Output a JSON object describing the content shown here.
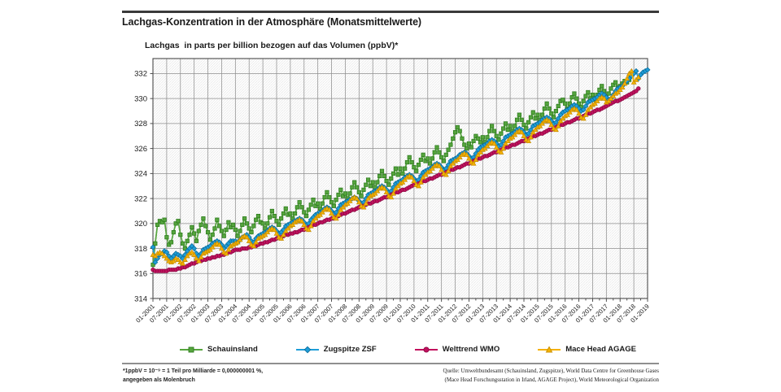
{
  "page": {
    "title": "Lachgas-Konzentration in der Atmosphäre (Monatsmittelwerte)",
    "subtitle": "Lachgas  in parts per billion bezogen auf das Volumen (ppbV)*",
    "footnote_line1": "*1ppbV = 10⁻⁹ = 1 Teil pro Milliarde = 0,000000001 %,",
    "footnote_line2": "angegeben als Molenbruch",
    "source_line1": "Quelle: Umweltbundesamt (Schauinsland, Zugspitze), World Data Centre for Greenhouse Gases",
    "source_line2": "(Mace Head Forschungsstation in Irland, AGAGE Project), World Meteorological Organization"
  },
  "chart_data": {
    "type": "line",
    "title": "Lachgas-Konzentration in der Atmosphäre (Monatsmittelwerte)",
    "ylabel": "Lachgas in parts per billion bezogen auf das Volumen (ppbV)*",
    "xlabel": "",
    "grid": true,
    "background_hatch": true,
    "legend_position": "bottom",
    "x_unit": "month",
    "x_start": "01-2001",
    "x_end": "01-2019",
    "ylim": [
      314,
      333.2
    ],
    "y_ticks": [
      314,
      316,
      318,
      320,
      322,
      324,
      326,
      328,
      330,
      332
    ],
    "x_tick_labels": [
      "01-2001",
      "07-2001",
      "01-2002",
      "07-2002",
      "01-2003",
      "07-2003",
      "01-2004",
      "07-2004",
      "01-2005",
      "07-2005",
      "01-2006",
      "07-2006",
      "01-2007",
      "07-2007",
      "01-2008",
      "07-2008",
      "01-2009",
      "07-2009",
      "01-2010",
      "07-2010",
      "01-2011",
      "07-2011",
      "01-2012",
      "07-2012",
      "01-2013",
      "07-2013",
      "01-2014",
      "07-2014",
      "01-2015",
      "07-2015",
      "01-2016",
      "07-2016",
      "01-2017",
      "07-2017",
      "01-2018",
      "07-2018",
      "01-2019"
    ],
    "series": [
      {
        "name": "Schauinsland",
        "marker": "square",
        "color": "#56a53e",
        "edge": "#2e7d1e",
        "start": "01-2001",
        "interval": "monthly",
        "values": [
          316.7,
          318.4,
          319.9,
          320.2,
          320.1,
          320.3,
          318.9,
          318.3,
          318.5,
          319.3,
          320.0,
          320.2,
          319.1,
          318.4,
          318.0,
          318.6,
          319.1,
          319.7,
          319.2,
          318.6,
          319.4,
          319.9,
          320.4,
          319.8,
          319.3,
          318.7,
          319.1,
          319.6,
          320.3,
          319.8,
          319.4,
          319.0,
          319.5,
          320.1,
          319.7,
          319.9,
          319.5,
          319.0,
          319.4,
          319.9,
          320.4,
          320.0,
          319.6,
          319.3,
          319.8,
          320.3,
          320.6,
          320.1,
          320.0,
          319.6,
          320.0,
          320.5,
          321.0,
          320.6,
          320.2,
          319.9,
          320.4,
          320.8,
          321.2,
          320.7,
          320.8,
          320.4,
          320.8,
          321.3,
          321.7,
          321.3,
          320.9,
          320.6,
          321.1,
          321.5,
          321.9,
          321.4,
          321.6,
          321.2,
          321.6,
          322.1,
          322.5,
          322.1,
          321.7,
          321.4,
          321.9,
          322.3,
          322.7,
          322.2,
          322.4,
          322.0,
          322.4,
          322.9,
          323.3,
          322.9,
          322.5,
          322.2,
          322.7,
          323.1,
          323.5,
          323.0,
          323.3,
          322.9,
          323.3,
          323.8,
          324.2,
          323.8,
          323.4,
          323.1,
          323.6,
          324.0,
          324.4,
          323.9,
          324.4,
          324.0,
          324.4,
          324.9,
          325.3,
          324.9,
          324.5,
          324.2,
          324.7,
          325.1,
          325.5,
          325.0,
          325.2,
          324.8,
          325.2,
          325.7,
          326.1,
          325.7,
          325.3,
          325.0,
          325.5,
          325.9,
          326.3,
          326.8,
          327.3,
          327.7,
          327.4,
          326.8,
          326.3,
          326.0,
          326.4,
          326.1,
          326.6,
          327.0,
          326.8,
          326.5,
          326.9,
          326.5,
          326.9,
          327.4,
          327.8,
          327.4,
          327.0,
          326.7,
          327.2,
          327.6,
          328.0,
          327.5,
          327.8,
          327.4,
          327.8,
          328.3,
          328.7,
          328.3,
          327.9,
          327.6,
          328.1,
          328.5,
          328.9,
          328.4,
          328.7,
          328.3,
          328.7,
          329.2,
          329.6,
          329.2,
          328.8,
          328.5,
          329.0,
          329.4,
          329.8,
          329.9,
          329.6,
          329.2,
          329.6,
          330.1,
          330.4,
          330.0,
          329.6,
          329.3,
          329.8,
          330.2,
          330.5,
          330.0,
          330.3,
          329.9,
          330.3,
          330.7,
          331.0,
          330.6,
          330.2,
          330.4,
          330.8,
          331.1,
          331.3,
          330.9,
          331.0,
          331.2,
          331.4,
          331.3,
          331.5
        ]
      },
      {
        "name": "Zugspitze ZSF",
        "marker": "diamond",
        "color": "#1e9ed9",
        "edge": "#0c6f9e",
        "start": "01-2001",
        "interval": "monthly",
        "values": [
          318.1,
          316.9,
          317.2,
          317.5,
          317.6,
          317.8,
          317.7,
          317.4,
          317.2,
          317.4,
          317.6,
          317.5,
          317.4,
          317.2,
          317.5,
          317.8,
          318.0,
          318.2,
          318.0,
          317.6,
          317.4,
          317.6,
          317.9,
          318.0,
          318.1,
          318.2,
          318.4,
          318.5,
          318.6,
          318.5,
          318.3,
          318.0,
          318.2,
          318.4,
          318.6,
          318.6,
          318.6,
          318.5,
          318.7,
          318.9,
          319.0,
          319.1,
          318.9,
          318.6,
          318.5,
          318.8,
          319.0,
          319.1,
          319.2,
          319.3,
          319.4,
          319.6,
          319.7,
          319.6,
          319.4,
          319.2,
          319.3,
          319.5,
          319.8,
          319.9,
          320.0,
          320.1,
          320.2,
          320.3,
          320.4,
          320.3,
          320.1,
          319.9,
          320.0,
          320.3,
          320.5,
          320.7,
          320.8,
          320.9,
          321.0,
          321.2,
          321.3,
          321.2,
          321.0,
          320.8,
          320.9,
          321.2,
          321.5,
          321.6,
          321.7,
          321.8,
          321.9,
          322.0,
          322.1,
          322.0,
          321.8,
          321.6,
          321.7,
          322.0,
          322.3,
          322.4,
          322.5,
          322.6,
          322.7,
          322.9,
          323.0,
          322.9,
          322.7,
          322.5,
          322.6,
          322.9,
          323.2,
          323.3,
          323.4,
          323.5,
          323.7,
          323.8,
          323.9,
          323.8,
          323.6,
          323.4,
          323.5,
          323.8,
          324.1,
          324.2,
          324.3,
          324.4,
          324.5,
          324.7,
          324.8,
          324.7,
          324.5,
          324.3,
          324.4,
          324.7,
          325.0,
          325.1,
          325.2,
          325.3,
          325.5,
          325.6,
          325.7,
          325.6,
          325.4,
          325.2,
          325.3,
          325.6,
          325.9,
          326.1,
          326.2,
          326.3,
          326.4,
          326.6,
          326.7,
          326.6,
          326.4,
          326.2,
          326.3,
          326.6,
          326.9,
          327.0,
          327.1,
          327.2,
          327.3,
          327.5,
          327.6,
          327.5,
          327.3,
          327.1,
          327.2,
          327.5,
          327.8,
          327.9,
          328.0,
          328.1,
          328.3,
          328.4,
          328.5,
          328.4,
          328.2,
          328.0,
          328.1,
          328.4,
          328.7,
          328.9,
          329.0,
          329.1,
          329.2,
          329.4,
          329.5,
          329.4,
          329.2,
          329.0,
          329.1,
          329.4,
          329.7,
          329.8,
          329.9,
          330.0,
          330.1,
          330.3,
          330.4,
          330.3,
          330.1,
          329.9,
          330.0,
          330.3,
          330.6,
          330.8,
          330.9,
          331.0,
          331.2,
          331.4,
          331.6,
          331.8,
          332.0,
          332.2,
          331.6,
          331.9,
          332.1,
          332.2,
          332.3
        ]
      },
      {
        "name": "Welttrend WMO",
        "marker": "circle",
        "color": "#c2115e",
        "edge": "#8d0a45",
        "start": "01-2001",
        "interval": "monthly",
        "values": [
          316.3,
          316.2,
          316.2,
          316.2,
          316.2,
          316.2,
          316.2,
          316.3,
          316.3,
          316.3,
          316.3,
          316.4,
          316.4,
          316.5,
          316.5,
          316.6,
          316.7,
          316.8,
          316.8,
          316.9,
          317.0,
          317.0,
          317.1,
          317.1,
          317.2,
          317.2,
          317.3,
          317.3,
          317.4,
          317.4,
          317.5,
          317.5,
          317.6,
          317.7,
          317.7,
          317.8,
          317.9,
          317.9,
          317.9,
          318.0,
          318.0,
          318.0,
          318.1,
          318.1,
          318.2,
          318.2,
          318.3,
          318.4,
          318.4,
          318.5,
          318.5,
          318.6,
          318.7,
          318.7,
          318.8,
          318.9,
          318.9,
          319.0,
          319.1,
          319.1,
          319.2,
          319.2,
          319.3,
          319.3,
          319.4,
          319.5,
          319.5,
          319.6,
          319.7,
          319.8,
          319.9,
          319.9,
          320.0,
          320.1,
          320.1,
          320.2,
          320.3,
          320.3,
          320.4,
          320.4,
          320.5,
          320.6,
          320.7,
          320.8,
          320.8,
          320.9,
          321.0,
          321.1,
          321.1,
          321.2,
          321.3,
          321.4,
          321.4,
          321.5,
          321.6,
          321.6,
          321.7,
          321.8,
          321.8,
          321.9,
          322.0,
          322.1,
          322.1,
          322.2,
          322.3,
          322.4,
          322.5,
          322.5,
          322.6,
          322.7,
          322.7,
          322.8,
          322.9,
          323.0,
          323.1,
          323.1,
          323.2,
          323.3,
          323.4,
          323.4,
          323.5,
          323.6,
          323.6,
          323.7,
          323.8,
          323.9,
          323.9,
          324.0,
          324.1,
          324.2,
          324.3,
          324.3,
          324.4,
          324.5,
          324.5,
          324.6,
          324.7,
          324.8,
          324.8,
          324.9,
          325.0,
          325.1,
          325.2,
          325.2,
          325.3,
          325.4,
          325.4,
          325.5,
          325.6,
          325.7,
          325.7,
          325.8,
          325.9,
          326.0,
          326.1,
          326.1,
          326.2,
          326.3,
          326.3,
          326.4,
          326.5,
          326.6,
          326.6,
          326.7,
          326.8,
          326.9,
          327.0,
          327.0,
          327.1,
          327.2,
          327.2,
          327.3,
          327.4,
          327.5,
          327.5,
          327.6,
          327.7,
          327.8,
          327.9,
          327.9,
          328.0,
          328.1,
          328.1,
          328.2,
          328.3,
          328.4,
          328.4,
          328.5,
          328.6,
          328.7,
          328.8,
          328.8,
          328.9,
          329.0,
          329.1,
          329.1,
          329.2,
          329.3,
          329.4,
          329.5,
          329.6,
          329.7,
          329.8,
          329.8,
          329.9,
          330.0,
          330.1,
          330.2,
          330.3,
          330.4,
          330.5,
          330.6,
          330.8
        ]
      },
      {
        "name": "Mace Head AGAGE",
        "marker": "triangle",
        "color": "#f5b200",
        "edge": "#c98f00",
        "start": "01-2001",
        "interval": "monthly",
        "values": [
          317.5,
          317.4,
          317.6,
          317.7,
          317.6,
          317.4,
          317.2,
          317.0,
          316.9,
          317.0,
          317.2,
          317.1,
          316.9,
          316.8,
          317.1,
          317.4,
          317.6,
          317.7,
          317.5,
          317.2,
          317.0,
          317.3,
          317.6,
          317.7,
          317.8,
          317.9,
          318.1,
          318.3,
          318.4,
          318.3,
          318.0,
          317.7,
          317.6,
          317.9,
          318.2,
          318.3,
          318.4,
          318.5,
          318.7,
          318.9,
          319.0,
          318.9,
          318.6,
          318.3,
          318.2,
          318.5,
          318.8,
          318.9,
          319.0,
          319.1,
          319.3,
          319.5,
          319.6,
          319.5,
          319.2,
          318.9,
          318.8,
          319.1,
          319.4,
          319.6,
          319.8,
          319.9,
          320.1,
          320.2,
          320.3,
          320.2,
          319.9,
          319.6,
          319.5,
          319.8,
          320.2,
          320.4,
          320.6,
          320.7,
          320.9,
          321.1,
          321.2,
          321.1,
          320.8,
          320.5,
          320.4,
          320.7,
          321.1,
          321.3,
          321.5,
          321.6,
          321.8,
          322.0,
          322.1,
          322.0,
          321.7,
          321.4,
          321.3,
          321.6,
          322.0,
          322.2,
          322.3,
          322.4,
          322.6,
          322.8,
          322.9,
          322.8,
          322.5,
          322.2,
          322.1,
          322.4,
          322.8,
          323.0,
          323.2,
          323.3,
          323.5,
          323.7,
          323.8,
          323.7,
          323.4,
          323.1,
          323.0,
          323.3,
          323.7,
          323.9,
          324.1,
          324.2,
          324.4,
          324.6,
          324.7,
          324.6,
          324.3,
          324.0,
          323.9,
          324.2,
          324.6,
          324.8,
          325.0,
          325.1,
          325.3,
          325.5,
          325.6,
          325.5,
          325.2,
          324.9,
          324.8,
          325.1,
          325.5,
          325.7,
          325.9,
          326.0,
          326.2,
          326.4,
          326.5,
          326.4,
          326.1,
          325.8,
          325.7,
          326.0,
          326.4,
          326.6,
          326.8,
          326.9,
          327.1,
          327.3,
          327.4,
          327.3,
          327.0,
          326.7,
          326.6,
          326.9,
          327.3,
          327.5,
          327.7,
          327.8,
          328.0,
          328.2,
          328.3,
          328.2,
          327.9,
          327.6,
          327.5,
          327.8,
          328.2,
          328.4,
          328.6,
          328.7,
          328.9,
          329.1,
          329.2,
          329.1,
          328.8,
          328.5,
          328.4,
          328.7,
          329.1,
          329.3,
          329.5,
          329.6,
          329.8,
          330.0,
          330.1,
          330.0,
          329.7,
          329.8,
          330.0,
          330.2,
          330.4,
          330.5,
          330.7,
          330.9,
          331.2,
          331.6,
          332.0,
          332.2,
          331.3,
          331.5,
          331.7
        ]
      }
    ]
  }
}
